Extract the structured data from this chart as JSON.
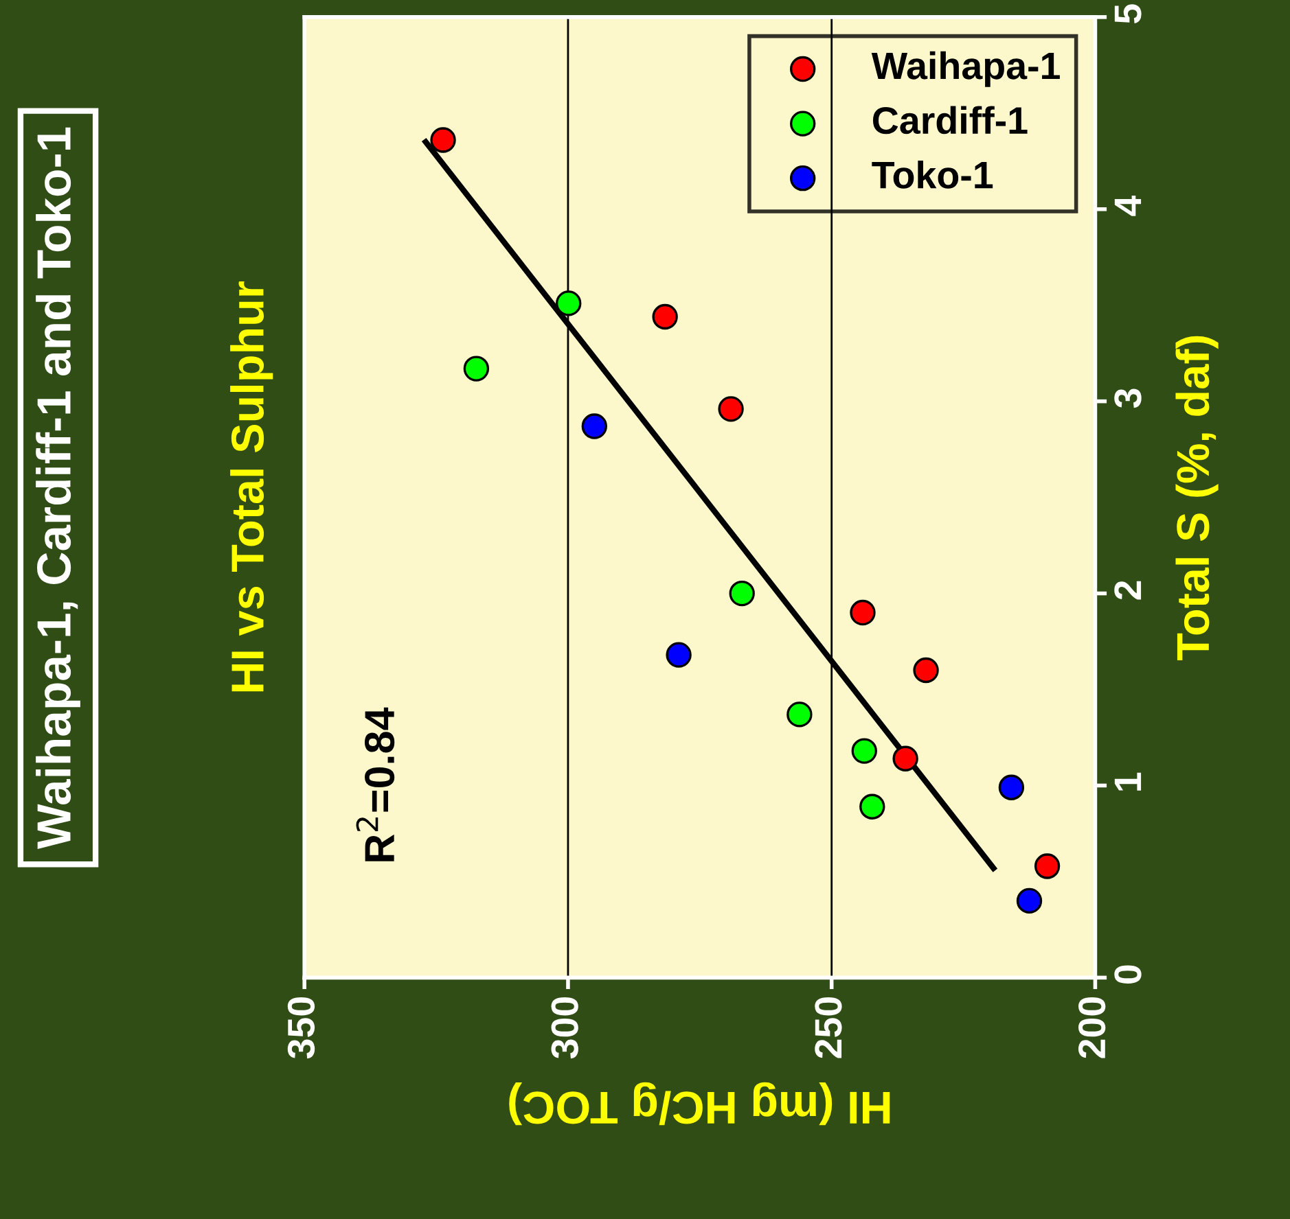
{
  "chart_data": {
    "type": "scatter",
    "title": "Waihapa-1, Cardiff-1 and Toko-1",
    "subtitle": "HI vs Total Sulphur",
    "xlabel": "HI (mg HC/g TOC)",
    "ylabel": "Total S (%, daf)",
    "xlim": [
      350,
      200
    ],
    "xticks": [
      350,
      300,
      250,
      200
    ],
    "ylim": [
      0,
      5
    ],
    "yticks": [
      0,
      1,
      2,
      3,
      4,
      5
    ],
    "grid": "x",
    "legend": "top right",
    "marker": "circle",
    "annotations": [
      "R$^{2}$=0.84"
    ],
    "series": [
      {
        "name": "Waihapa-1",
        "color": "#ff0000",
        "x": [
          323.7,
          281.6,
          269.1,
          244.1,
          232.1,
          236.0,
          209.1
        ],
        "values": [
          4.36,
          3.44,
          2.96,
          1.9,
          1.6,
          1.14,
          0.58
        ]
      },
      {
        "name": "Cardiff-1",
        "color": "#00ff00",
        "x": [
          299.9,
          317.4,
          267.0,
          256.1,
          243.8,
          242.3
        ],
        "values": [
          3.51,
          3.17,
          2.0,
          1.37,
          1.18,
          0.89
        ]
      },
      {
        "name": "Toko-1",
        "color": "#0000ff",
        "x": [
          295.0,
          279.0,
          215.9,
          212.5
        ],
        "values": [
          2.87,
          1.68,
          0.99,
          0.4
        ]
      },
      {
        "type": "line",
        "marker": "none",
        "color": "#000000",
        "x": [
          327.0,
          219.3
        ],
        "values": [
          4.35,
          0.57
        ]
      }
    ]
  }
}
